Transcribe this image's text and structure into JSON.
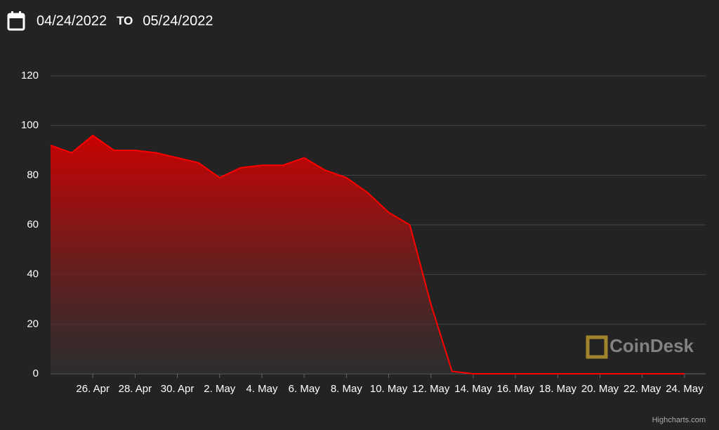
{
  "header": {
    "from": "04/24/2022",
    "to_word": "TO",
    "to": "05/24/2022"
  },
  "chart_data": {
    "type": "area",
    "x": [
      "2022-04-24",
      "2022-04-25",
      "2022-04-26",
      "2022-04-27",
      "2022-04-28",
      "2022-04-29",
      "2022-04-30",
      "2022-05-01",
      "2022-05-02",
      "2022-05-03",
      "2022-05-04",
      "2022-05-05",
      "2022-05-06",
      "2022-05-07",
      "2022-05-08",
      "2022-05-09",
      "2022-05-10",
      "2022-05-11",
      "2022-05-12",
      "2022-05-13",
      "2022-05-14",
      "2022-05-15",
      "2022-05-16",
      "2022-05-17",
      "2022-05-18",
      "2022-05-19",
      "2022-05-20",
      "2022-05-21",
      "2022-05-22",
      "2022-05-23",
      "2022-05-24"
    ],
    "values": [
      92,
      89,
      96,
      90,
      90,
      89,
      87,
      85,
      79,
      83,
      84,
      84,
      87,
      82,
      79,
      73,
      65,
      60,
      28,
      1,
      0.01,
      0,
      0,
      0,
      0,
      0,
      0,
      0,
      0,
      0,
      0
    ],
    "color": "#ff0000",
    "xlim": [
      "2022-04-24",
      "2022-05-25"
    ],
    "xticks": [
      {
        "value": "2022-04-26",
        "label": "26. Apr"
      },
      {
        "value": "2022-04-28",
        "label": "28. Apr"
      },
      {
        "value": "2022-04-30",
        "label": "30. Apr"
      },
      {
        "value": "2022-05-02",
        "label": "2. May"
      },
      {
        "value": "2022-05-04",
        "label": "4. May"
      },
      {
        "value": "2022-05-06",
        "label": "6. May"
      },
      {
        "value": "2022-05-08",
        "label": "8. May"
      },
      {
        "value": "2022-05-10",
        "label": "10. May"
      },
      {
        "value": "2022-05-12",
        "label": "12. May"
      },
      {
        "value": "2022-05-14",
        "label": "14. May"
      },
      {
        "value": "2022-05-16",
        "label": "16. May"
      },
      {
        "value": "2022-05-18",
        "label": "18. May"
      },
      {
        "value": "2022-05-20",
        "label": "20. May"
      },
      {
        "value": "2022-05-22",
        "label": "22. May"
      },
      {
        "value": "2022-05-24",
        "label": "24. May"
      }
    ],
    "ylim": [
      0,
      120
    ],
    "yticks": [
      0,
      20,
      40,
      60,
      80,
      100,
      120
    ],
    "grid": true,
    "watermark": "CoinDesk",
    "credit": "Highcharts.com"
  }
}
